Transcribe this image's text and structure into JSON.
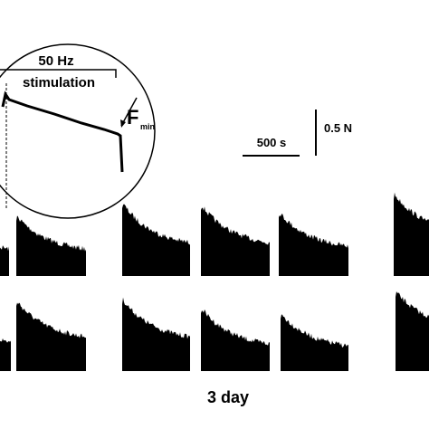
{
  "inset": {
    "frequency": "50 Hz",
    "label": "stimulation",
    "force_symbol": "F",
    "force_subscript": "min"
  },
  "scale_bars": {
    "time": "500 s",
    "force": "0.5 N"
  },
  "caption": "3 day"
}
